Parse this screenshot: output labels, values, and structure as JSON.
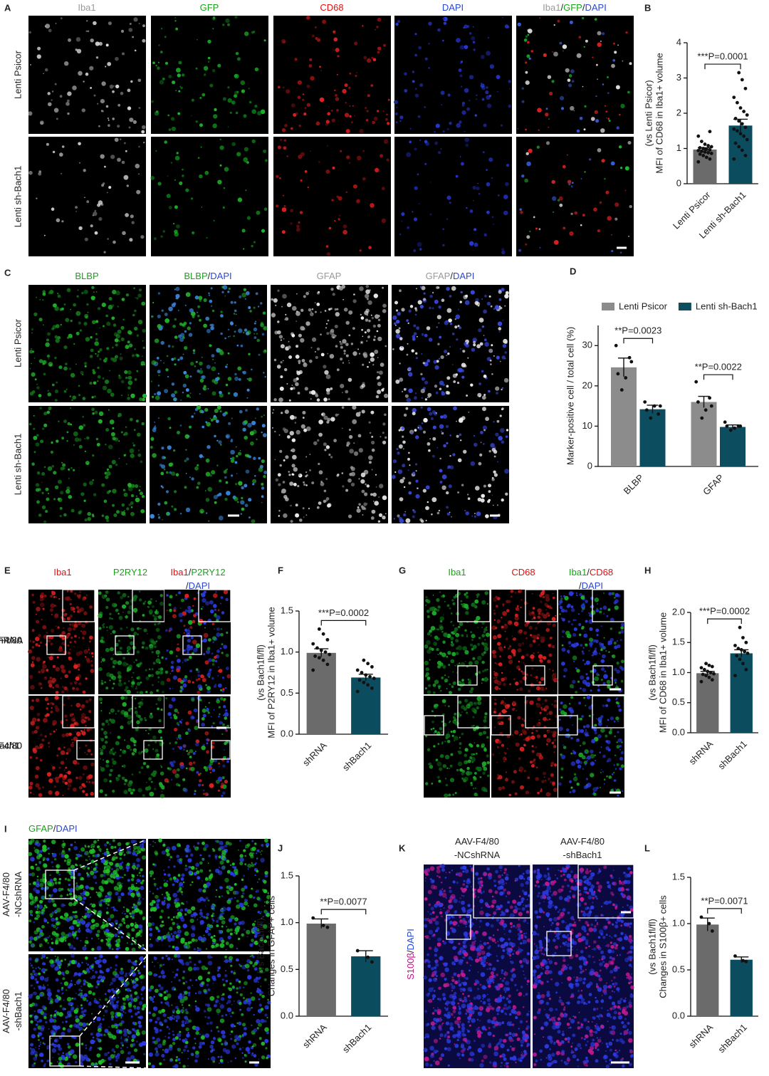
{
  "panel_letters": [
    "A",
    "B",
    "C",
    "D",
    "E",
    "F",
    "G",
    "H",
    "I",
    "J",
    "K",
    "L"
  ],
  "panel_a": {
    "headers": [
      [
        {
          "text": "Iba1",
          "color": "#9a9a9a"
        }
      ],
      [
        {
          "text": "GFP",
          "color": "#1aa31a"
        }
      ],
      [
        {
          "text": "CD68",
          "color": "#e01010"
        }
      ],
      [
        {
          "text": "DAPI",
          "color": "#2a48d0"
        }
      ],
      [
        {
          "text": "Iba1",
          "color": "#9a9a9a"
        },
        {
          "text": "/",
          "color": "#222222"
        },
        {
          "text": "GFP",
          "color": "#1aa31a"
        },
        {
          "text": "/",
          "color": "#222222"
        },
        {
          "text": "DAPI",
          "color": "#2a48d0"
        }
      ]
    ],
    "rows": [
      [
        "Lenti Psicor"
      ],
      [
        "Lenti sh-Bach1"
      ]
    ]
  },
  "panel_c": {
    "headers": [
      [
        {
          "text": "BLBP",
          "color": "#1aa31a"
        }
      ],
      [
        {
          "text": "BLBP",
          "color": "#1aa31a"
        },
        {
          "text": "/",
          "color": "#222222"
        },
        {
          "text": "DAPI",
          "color": "#2a48d0"
        }
      ],
      [
        {
          "text": "GFAP",
          "color": "#9a9a9a"
        }
      ],
      [
        {
          "text": "GFAP",
          "color": "#9a9a9a"
        },
        {
          "text": "/",
          "color": "#222222"
        },
        {
          "text": "DAPI",
          "color": "#2a48d0"
        }
      ]
    ],
    "rows": [
      [
        "Lenti Psicor"
      ],
      [
        "Lenti sh-Bach1"
      ]
    ]
  },
  "panel_e": {
    "headers": [
      [
        {
          "text": "Iba1",
          "color": "#e01010"
        }
      ],
      [
        {
          "text": "P2RY12",
          "color": "#1aa31a"
        }
      ],
      [
        {
          "text": "Iba1",
          "color": "#e01010"
        },
        {
          "text": "/",
          "color": "#222222"
        },
        {
          "text": "P2RY12",
          "color": "#1aa31a"
        }
      ],
      [
        {
          "text": "/",
          "color": "#222222"
        },
        {
          "text": "DAPI",
          "color": "#2a48d0"
        }
      ]
    ],
    "rows": [
      [
        "AAV-F4/80",
        "-NCshRNA"
      ],
      [
        "AAV-F4/80",
        "-shBach1"
      ]
    ]
  },
  "panel_g": {
    "headers": [
      [
        {
          "text": "Iba1",
          "color": "#1aa31a"
        }
      ],
      [
        {
          "text": "CD68",
          "color": "#e01010"
        }
      ],
      [
        {
          "text": "Iba1",
          "color": "#1aa31a"
        },
        {
          "text": "/",
          "color": "#222222"
        },
        {
          "text": "CD68",
          "color": "#e01010"
        }
      ],
      [
        {
          "text": "/",
          "color": "#222222"
        },
        {
          "text": "DAPI",
          "color": "#2a48d0"
        }
      ]
    ],
    "rows": [
      [
        "AAV-F4/80",
        "-NCshRNA"
      ],
      [
        "AAV-F4/80",
        "-shBach1"
      ]
    ]
  },
  "panel_i": {
    "headers": [
      [
        {
          "text": "GFAP",
          "color": "#1aa31a"
        },
        {
          "text": "/",
          "color": "#222222"
        },
        {
          "text": "DAPI",
          "color": "#2a48d0"
        }
      ]
    ],
    "rows": [
      [
        "AAV-F4/80",
        "-NCshRNA"
      ],
      [
        "AAV-F4/80",
        "-shBach1"
      ]
    ]
  },
  "panel_k": {
    "headers": [
      [
        {
          "text": "AAV-F4/80",
          "color": "#222222"
        }
      ],
      [
        {
          "text": "-NCshRNA",
          "color": "#222222"
        }
      ],
      [
        {
          "text": "AAV-F4/80",
          "color": "#222222"
        }
      ],
      [
        {
          "text": "-shBach1",
          "color": "#222222"
        }
      ]
    ],
    "side": [
      {
        "text": "S100β",
        "color": "#c0158a"
      },
      {
        "text": "/",
        "color": "#222222"
      },
      {
        "text": "DAPI",
        "color": "#2a48d0"
      }
    ]
  },
  "chart_data": [
    {
      "type": "bar",
      "ylabel": "MFI of CD68 in Iba1+ volume",
      "ylabel_note": "(vs Lenti Psicor)",
      "categories": [
        "Lenti Psicor",
        "Lenti sh-Bach1"
      ],
      "values": [
        0.97,
        1.65
      ],
      "errors": [
        0.05,
        0.18
      ],
      "colors": [
        "#6b6b6b",
        "#0b4d5f"
      ],
      "points": [
        [
          0.62,
          0.7,
          0.75,
          0.8,
          0.84,
          0.86,
          0.88,
          0.9,
          0.92,
          0.94,
          0.96,
          0.98,
          1.0,
          1.02,
          1.05,
          1.08,
          1.12,
          1.2,
          1.35,
          1.48
        ],
        [
          0.7,
          0.8,
          0.95,
          1.05,
          1.15,
          1.25,
          1.35,
          1.42,
          1.5,
          1.55,
          1.6,
          1.7,
          1.78,
          1.85,
          1.95,
          2.05,
          2.15,
          2.3,
          2.45,
          2.7,
          2.95,
          3.15
        ]
      ],
      "ylim": [
        0,
        4
      ],
      "yticks": [
        0,
        1,
        2,
        3,
        4
      ],
      "annotation": "***P=0.0001"
    },
    {
      "type": "grouped_bar",
      "ylabel": "Marker-positive cell / total cell (%)",
      "categories": [
        "BLBP",
        "GFAP"
      ],
      "series": [
        {
          "name": "Lenti Psicor",
          "color": "#8c8c8c",
          "values": [
            24.6,
            16.0
          ],
          "errors": [
            2.3,
            1.4
          ],
          "points": [
            [
              30,
              27,
              22,
              19,
              23,
              26
            ],
            [
              21,
              17,
              14,
              12,
              16,
              15
            ]
          ]
        },
        {
          "name": "Lenti sh-Bach1",
          "color": "#0c4e60",
          "values": [
            14.2,
            9.8
          ],
          "errors": [
            1.0,
            0.5
          ],
          "points": [
            [
              16,
              13,
              15,
              12,
              14,
              15
            ],
            [
              11,
              10,
              9.5,
              9,
              10,
              10
            ]
          ]
        }
      ],
      "ylim": [
        0,
        35
      ],
      "yticks": [
        0,
        10,
        20,
        30
      ],
      "annotations": [
        "**P=0.0023",
        "**P=0.0022"
      ],
      "legend": "top"
    },
    {
      "type": "bar",
      "ylabel": "MFI of P2RY12 in Iba1+ volume",
      "ylabel_note": "(vs Bach1fl/fl)",
      "categories": [
        "shRNA",
        "shBach1"
      ],
      "values": [
        0.99,
        0.69
      ],
      "errors": [
        0.05,
        0.04
      ],
      "colors": [
        "#6b6b6b",
        "#0b4d5f"
      ],
      "points": [
        [
          0.78,
          0.85,
          0.9,
          0.93,
          0.95,
          0.97,
          1.0,
          1.02,
          1.05,
          1.1,
          1.15,
          1.22,
          1.28
        ],
        [
          0.52,
          0.56,
          0.6,
          0.63,
          0.66,
          0.68,
          0.7,
          0.72,
          0.75,
          0.78,
          0.82,
          0.86,
          0.9
        ]
      ],
      "ylim": [
        0,
        1.5
      ],
      "yticks": [
        {
          "value": 0,
          "label": "0.0"
        },
        {
          "value": 0.5,
          "label": "0.5"
        },
        {
          "value": 1,
          "label": "1.0"
        },
        {
          "value": 1.5,
          "label": "1.5"
        }
      ],
      "annotation": "***P=0.0002"
    },
    {
      "type": "bar",
      "ylabel": "MFI of CD68 in Iba1+ volume",
      "ylabel_note": "(vs Bach1fl/fl)",
      "categories": [
        "shRNA",
        "shBach1"
      ],
      "values": [
        0.99,
        1.32
      ],
      "errors": [
        0.03,
        0.06
      ],
      "colors": [
        "#6b6b6b",
        "#0b4d5f"
      ],
      "points": [
        [
          0.85,
          0.88,
          0.92,
          0.95,
          0.97,
          0.98,
          1.0,
          1.02,
          1.05,
          1.08,
          1.1,
          1.12,
          1.15
        ],
        [
          0.95,
          1.05,
          1.15,
          1.22,
          1.28,
          1.32,
          1.35,
          1.38,
          1.4,
          1.45,
          1.5,
          1.58,
          1.75
        ]
      ],
      "ylim": [
        0,
        2
      ],
      "yticks": [
        {
          "value": 0,
          "label": "0.0"
        },
        {
          "value": 0.5,
          "label": "0.5"
        },
        {
          "value": 1,
          "label": "1.0"
        },
        {
          "value": 1.5,
          "label": "1.5"
        },
        {
          "value": 2,
          "label": "2.0"
        }
      ],
      "annotation": "***P=0.0002"
    },
    {
      "type": "bar",
      "ylabel": "Changes in GFAP+ cells",
      "ylabel_note": "(vs Bach1fl/fl)",
      "categories": [
        "shRNA",
        "shBach1"
      ],
      "values": [
        0.99,
        0.64
      ],
      "errors": [
        0.05,
        0.06
      ],
      "colors": [
        "#6b6b6b",
        "#0b4d5f"
      ],
      "points": [
        [
          1.05,
          0.95,
          0.97
        ],
        [
          0.7,
          0.58,
          0.63
        ]
      ],
      "ylim": [
        0,
        1.5
      ],
      "yticks": [
        {
          "value": 0,
          "label": "0.0"
        },
        {
          "value": 0.5,
          "label": "0.5"
        },
        {
          "value": 1,
          "label": "1.0"
        },
        {
          "value": 1.5,
          "label": "1.5"
        }
      ],
      "annotation": "**P=0.0077"
    },
    {
      "type": "bar",
      "ylabel": "Changes in S100β+ cells",
      "ylabel_note": "(vs Bach1fl/fl)",
      "categories": [
        "shRNA",
        "shBach1"
      ],
      "values": [
        0.99,
        0.61
      ],
      "errors": [
        0.07,
        0.03
      ],
      "colors": [
        "#6b6b6b",
        "#0b4d5f"
      ],
      "points": [
        [
          1.07,
          0.92,
          1.0
        ],
        [
          0.65,
          0.59,
          0.6
        ]
      ],
      "ylim": [
        0,
        1.5
      ],
      "yticks": [
        {
          "value": 0,
          "label": "0.0"
        },
        {
          "value": 0.5,
          "label": "0.5"
        },
        {
          "value": 1,
          "label": "1.0"
        },
        {
          "value": 1.5,
          "label": "1.5"
        }
      ],
      "annotation": "**P=0.0071"
    }
  ]
}
